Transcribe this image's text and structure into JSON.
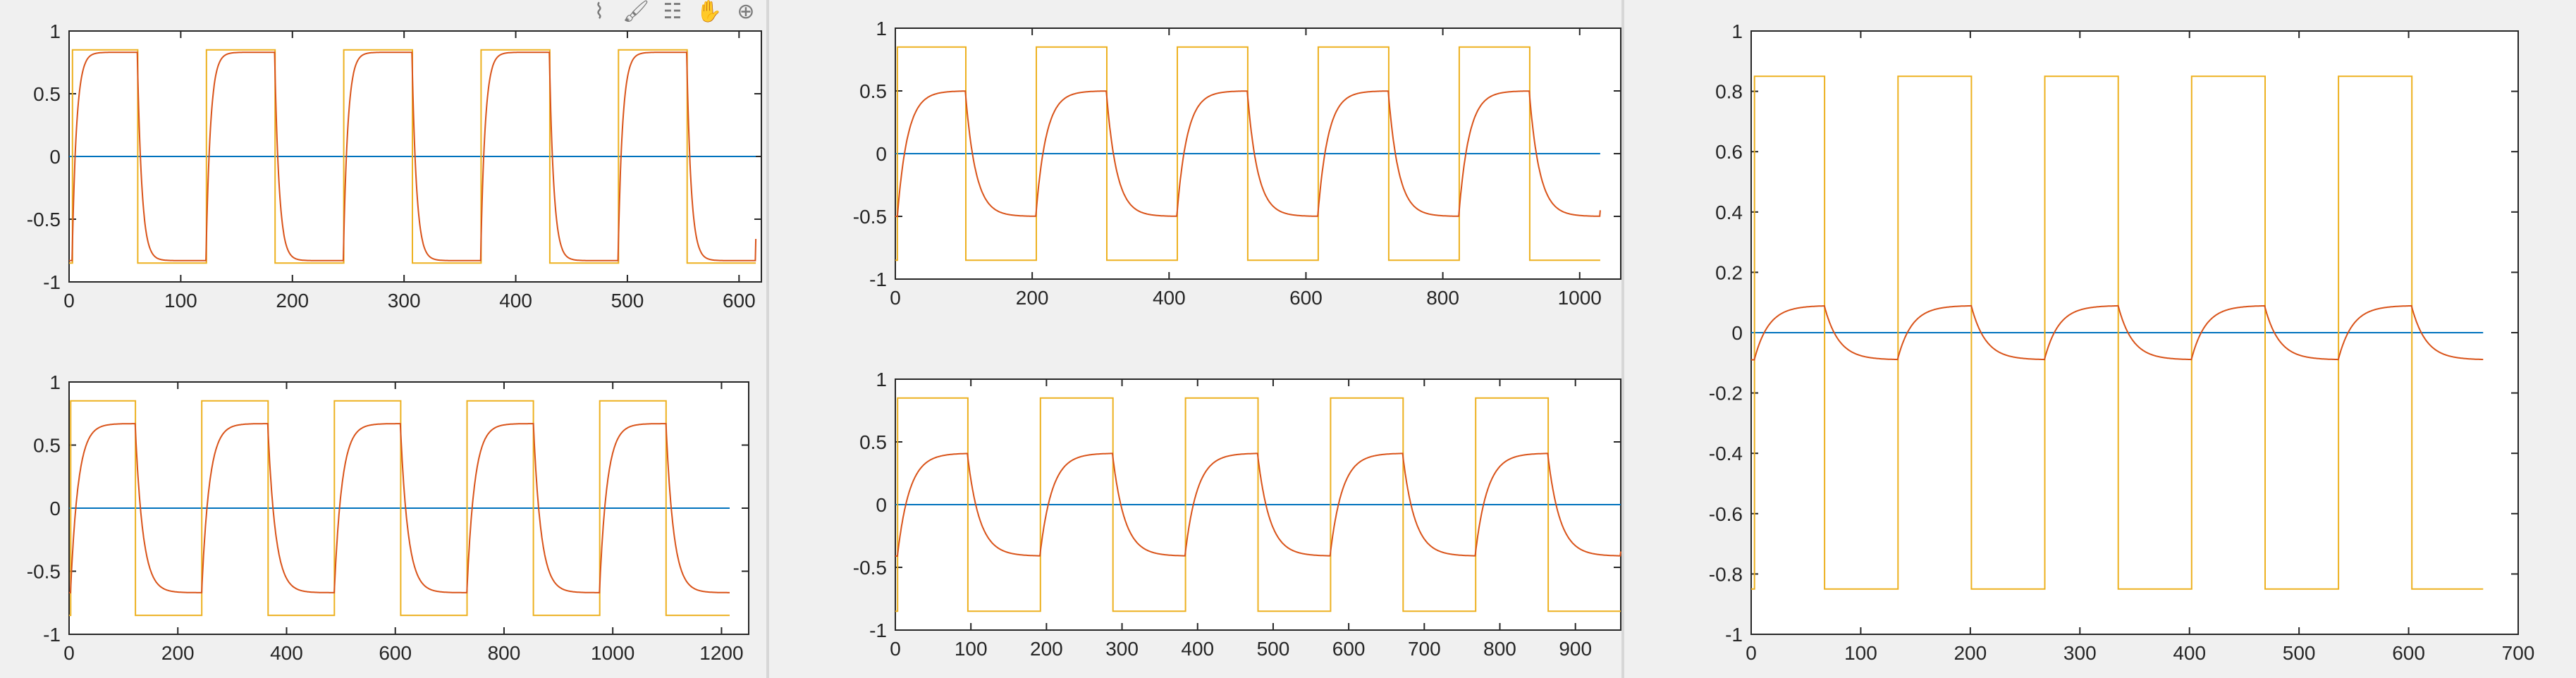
{
  "toolbar": {
    "icons": [
      "brush-select-icon",
      "brush-icon",
      "data-tips-icon",
      "pan-hand-icon",
      "zoom-in-icon"
    ],
    "glyphs": [
      "⌇",
      "🖌",
      "☷",
      "✋",
      "⊕"
    ]
  },
  "colors": {
    "square_wave": "#EDB120",
    "response": "#D95319",
    "zero_line": "#0072BD",
    "background": "#f0f0f0",
    "axes": "#ffffff"
  },
  "chart_data": [
    {
      "type": "line",
      "id": "top-left",
      "xlim": [
        0,
        620
      ],
      "ylim": [
        -1,
        1
      ],
      "xticks": [
        0,
        100,
        200,
        300,
        400,
        500,
        600
      ],
      "yticks": [
        -1,
        -0.5,
        0,
        0.5,
        1
      ],
      "xtick_labels": [
        "0",
        "100",
        "200",
        "300",
        "400",
        "500",
        "600"
      ],
      "ytick_labels": [
        "-1",
        "-0.5",
        "0",
        "0.5",
        "1"
      ],
      "x_end": 615,
      "period": 123,
      "amplitude": 0.85,
      "series": [
        {
          "role": "square_wave",
          "amplitude": 0.85
        },
        {
          "role": "response",
          "peak": 0.83,
          "tau": 4
        },
        {
          "role": "zero_line",
          "value": 0
        }
      ]
    },
    {
      "type": "line",
      "id": "bottom-left",
      "xlim": [
        0,
        1250
      ],
      "ylim": [
        -1,
        1
      ],
      "xticks": [
        0,
        200,
        400,
        600,
        800,
        1000,
        1200
      ],
      "yticks": [
        -1,
        -0.5,
        0,
        0.5,
        1
      ],
      "xtick_labels": [
        "0",
        "200",
        "400",
        "600",
        "800",
        "1000",
        "1200"
      ],
      "ytick_labels": [
        "-1",
        "-0.5",
        "0",
        "0.5",
        "1"
      ],
      "x_end": 1215,
      "period": 244,
      "amplitude": 0.85,
      "series": [
        {
          "role": "square_wave",
          "amplitude": 0.85
        },
        {
          "role": "response",
          "peak": 0.67,
          "tau": 14
        },
        {
          "role": "zero_line",
          "value": 0
        }
      ]
    },
    {
      "type": "line",
      "id": "top-middle",
      "xlim": [
        0,
        1060
      ],
      "ylim": [
        -1,
        1
      ],
      "xticks": [
        0,
        200,
        400,
        600,
        800,
        1000
      ],
      "yticks": [
        -1,
        -0.5,
        0,
        0.5,
        1
      ],
      "xtick_labels": [
        "0",
        "200",
        "400",
        "600",
        "800",
        "1000"
      ],
      "ytick_labels": [
        "-1",
        "-0.5",
        "0",
        "0.5",
        "1"
      ],
      "x_end": 1030,
      "period": 206,
      "amplitude": 0.85,
      "series": [
        {
          "role": "square_wave",
          "amplitude": 0.85
        },
        {
          "role": "response",
          "peak": 0.5,
          "tau": 15
        },
        {
          "role": "zero_line",
          "value": 0
        }
      ]
    },
    {
      "type": "line",
      "id": "bottom-middle",
      "xlim": [
        0,
        960
      ],
      "ylim": [
        -1,
        1
      ],
      "xticks": [
        0,
        100,
        200,
        300,
        400,
        500,
        600,
        700,
        800,
        900
      ],
      "yticks": [
        -1,
        -0.5,
        0,
        0.5,
        1
      ],
      "xtick_labels": [
        "0",
        "100",
        "200",
        "300",
        "400",
        "500",
        "600",
        "700",
        "800",
        "900"
      ],
      "ytick_labels": [
        "-1",
        "-0.5",
        "0",
        "0.5",
        "1"
      ],
      "x_end": 960,
      "period": 192,
      "amplitude": 0.85,
      "series": [
        {
          "role": "square_wave",
          "amplitude": 0.85
        },
        {
          "role": "response",
          "peak": 0.41,
          "tau": 16
        },
        {
          "role": "zero_line",
          "value": 0
        }
      ]
    },
    {
      "type": "line",
      "id": "right",
      "xlim": [
        0,
        700
      ],
      "ylim": [
        -1,
        1
      ],
      "xticks": [
        0,
        100,
        200,
        300,
        400,
        500,
        600,
        700
      ],
      "yticks": [
        -1,
        -0.8,
        -0.6,
        -0.4,
        -0.2,
        0,
        0.2,
        0.4,
        0.6,
        0.8,
        1
      ],
      "xtick_labels": [
        "0",
        "100",
        "200",
        "300",
        "400",
        "500",
        "600",
        "700"
      ],
      "ytick_labels": [
        "-1",
        "-0.8",
        "-0.6",
        "-0.4",
        "-0.2",
        "0",
        "0.2",
        "0.4",
        "0.6",
        "0.8",
        "1"
      ],
      "x_end": 668,
      "period": 134,
      "amplitude": 0.85,
      "series": [
        {
          "role": "square_wave",
          "amplitude": 0.85
        },
        {
          "role": "response",
          "peak": 0.09,
          "tau": 13
        },
        {
          "role": "zero_line",
          "value": 0
        }
      ]
    }
  ]
}
